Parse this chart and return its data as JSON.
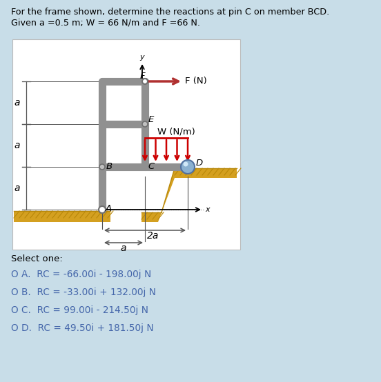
{
  "bg_color": "#c8dde8",
  "diagram_bg": "#ffffff",
  "title_line1": "For the frame shown, determine the reactions at pin C on member BCD.",
  "title_line2": "Given a =0.5 m; W = 66 N/m and F =66 N.",
  "select_text": "Select one:",
  "options": [
    "O A.  RC = -66.00i - 198.00j N",
    "O B.  RC = -33.00i + 132.00j N",
    "O C.  RC = 99.00i - 214.50j N",
    "O D.  RC = 49.50i + 181.50j N"
  ],
  "beam_color": "#909090",
  "load_color": "#cc0000",
  "ground_color": "#d4a020",
  "ball_color": "#6090c0",
  "text_color": "#555577",
  "dim_color": "#555555",
  "opt_color": "#4466aa"
}
